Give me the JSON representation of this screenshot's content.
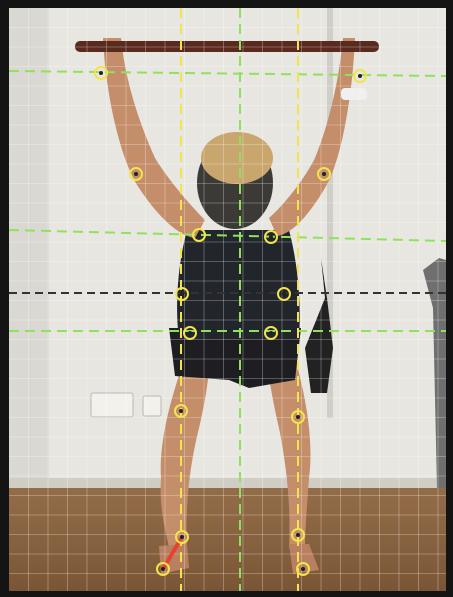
{
  "image": {
    "description_name": "overhead-squat-posture-analysis",
    "colors": {
      "frame": "#141414",
      "wall": "#e7e6e1",
      "floor": "#8a6440",
      "grid": "#ffffff",
      "vertical_guides_yellow": "#f2e44a",
      "center_line_green": "#8fe35a",
      "horizontal_guides_green": "#8fe35a",
      "horizontal_guide_dark": "#333333",
      "landmark_ring": "#f2e44a",
      "foot_segment_red": "#e8412e"
    },
    "grid": {
      "visible": true
    }
  }
}
